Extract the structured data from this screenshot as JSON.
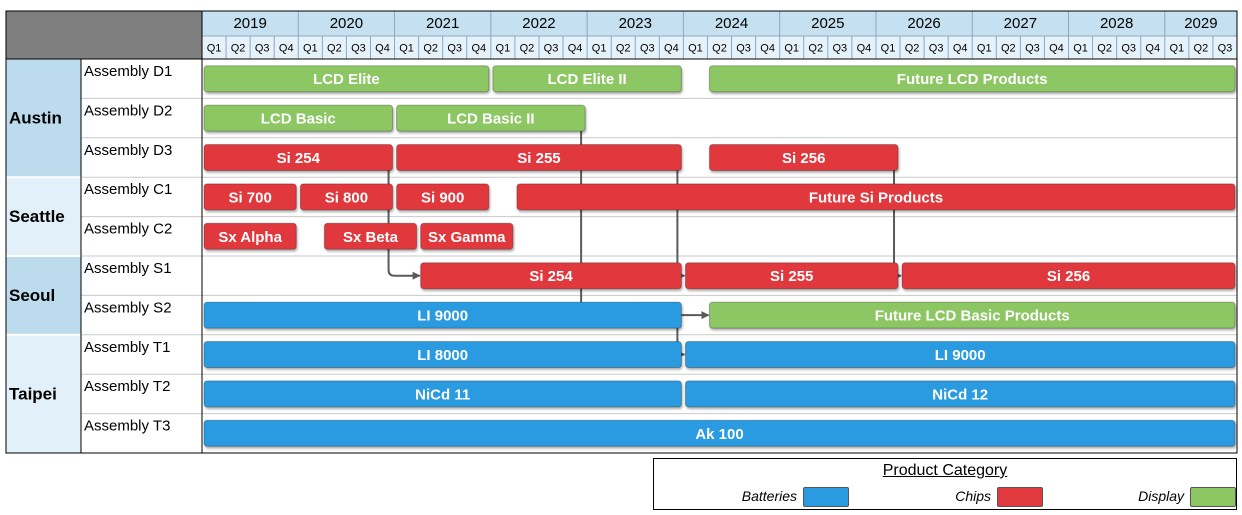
{
  "chart_data": {
    "type": "gantt",
    "years": [
      "2019",
      "2020",
      "2021",
      "2022",
      "2023",
      "2024",
      "2025",
      "2026",
      "2027",
      "2028",
      "2029"
    ],
    "quarters": [
      "Q1",
      "Q2",
      "Q3",
      "Q4"
    ],
    "start_year": 2019,
    "total_quarters": 43,
    "locations": [
      {
        "name": "Austin",
        "lines": [
          "Assembly D1",
          "Assembly D2",
          "Assembly D3"
        ]
      },
      {
        "name": "Seattle",
        "lines": [
          "Assembly C1",
          "Assembly C2"
        ]
      },
      {
        "name": "Seoul",
        "lines": [
          "Assembly S1",
          "Assembly S2"
        ]
      },
      {
        "name": "Taipei",
        "lines": [
          "Assembly T1",
          "Assembly T2",
          "Assembly T3"
        ]
      }
    ],
    "categories": [
      {
        "name": "Batteries",
        "color": "#2a9be0"
      },
      {
        "name": "Chips",
        "color": "#e0393e"
      },
      {
        "name": "Display",
        "color": "#8cc763"
      }
    ],
    "tasks": [
      {
        "line": "Assembly D1",
        "label": "LCD Elite",
        "category": "Display",
        "start": "2019 Q1",
        "end": "2021 Q4"
      },
      {
        "line": "Assembly D1",
        "label": "LCD Elite II",
        "category": "Display",
        "start": "2022 Q1",
        "end": "2023 Q4"
      },
      {
        "line": "Assembly D1",
        "label": "Future LCD Products",
        "category": "Display",
        "start": "2024 Q2",
        "end": "2029 Q3"
      },
      {
        "line": "Assembly D2",
        "label": "LCD Basic",
        "category": "Display",
        "start": "2019 Q1",
        "end": "2020 Q4"
      },
      {
        "line": "Assembly D2",
        "label": "LCD Basic II",
        "category": "Display",
        "start": "2021 Q1",
        "end": "2022 Q4"
      },
      {
        "line": "Assembly D3",
        "label": "Si 254",
        "category": "Chips",
        "start": "2019 Q1",
        "end": "2020 Q4"
      },
      {
        "line": "Assembly D3",
        "label": "Si 255",
        "category": "Chips",
        "start": "2021 Q1",
        "end": "2023 Q4"
      },
      {
        "line": "Assembly D3",
        "label": "Si 256",
        "category": "Chips",
        "start": "2024 Q2",
        "end": "2026 Q1"
      },
      {
        "line": "Assembly C1",
        "label": "Si 700",
        "category": "Chips",
        "start": "2019 Q1",
        "end": "2019 Q4"
      },
      {
        "line": "Assembly C1",
        "label": "Si 800",
        "category": "Chips",
        "start": "2020 Q1",
        "end": "2020 Q4"
      },
      {
        "line": "Assembly C1",
        "label": "Si 900",
        "category": "Chips",
        "start": "2021 Q1",
        "end": "2021 Q4"
      },
      {
        "line": "Assembly C1",
        "label": "Future Si Products",
        "category": "Chips",
        "start": "2022 Q2",
        "end": "2029 Q3"
      },
      {
        "line": "Assembly C2",
        "label": "Sx Alpha",
        "category": "Chips",
        "start": "2019 Q1",
        "end": "2019 Q4"
      },
      {
        "line": "Assembly C2",
        "label": "Sx Beta",
        "category": "Chips",
        "start": "2020 Q2",
        "end": "2021 Q1"
      },
      {
        "line": "Assembly C2",
        "label": "Sx Gamma",
        "category": "Chips",
        "start": "2021 Q2",
        "end": "2022 Q1"
      },
      {
        "line": "Assembly S1",
        "label": "Si 254",
        "category": "Chips",
        "start": "2021 Q2",
        "end": "2023 Q4"
      },
      {
        "line": "Assembly S1",
        "label": "Si 255",
        "category": "Chips",
        "start": "2024 Q1",
        "end": "2026 Q1"
      },
      {
        "line": "Assembly S1",
        "label": "Si 256",
        "category": "Chips",
        "start": "2026 Q2",
        "end": "2029 Q3"
      },
      {
        "line": "Assembly S2",
        "label": "LI 9000",
        "category": "Batteries",
        "start": "2019 Q1",
        "end": "2023 Q4"
      },
      {
        "line": "Assembly S2",
        "label": "Future LCD Basic Products",
        "category": "Display",
        "start": "2024 Q2",
        "end": "2029 Q3"
      },
      {
        "line": "Assembly T1",
        "label": "LI 8000",
        "category": "Batteries",
        "start": "2019 Q1",
        "end": "2023 Q4"
      },
      {
        "line": "Assembly T1",
        "label": "LI 9000",
        "category": "Batteries",
        "start": "2024 Q1",
        "end": "2029 Q3"
      },
      {
        "line": "Assembly T2",
        "label": "NiCd 11",
        "category": "Batteries",
        "start": "2019 Q1",
        "end": "2023 Q4"
      },
      {
        "line": "Assembly T2",
        "label": "NiCd 12",
        "category": "Batteries",
        "start": "2024 Q1",
        "end": "2029 Q3"
      },
      {
        "line": "Assembly T3",
        "label": "Ak 100",
        "category": "Batteries",
        "start": "2019 Q1",
        "end": "2029 Q3"
      }
    ],
    "dependencies": [
      {
        "from": "Assembly D3: Si 254",
        "to": "Assembly S1: Si 254"
      },
      {
        "from": "Assembly D3: Si 255",
        "to": "Assembly S1: Si 255"
      },
      {
        "from": "Assembly D3: Si 256",
        "to": "Assembly S1: Si 256"
      },
      {
        "from": "Assembly D2: LCD Basic II",
        "to": "Assembly S2: Future LCD Basic Products"
      },
      {
        "from": "Assembly S2: LI 9000",
        "to": "Assembly T1: LI 9000"
      }
    ]
  },
  "legend": {
    "title": "Product Category",
    "items": [
      {
        "label": "Batteries",
        "color": "#2a9be0"
      },
      {
        "label": "Chips",
        "color": "#e0393e"
      },
      {
        "label": "Display",
        "color": "#8cc763"
      }
    ]
  }
}
